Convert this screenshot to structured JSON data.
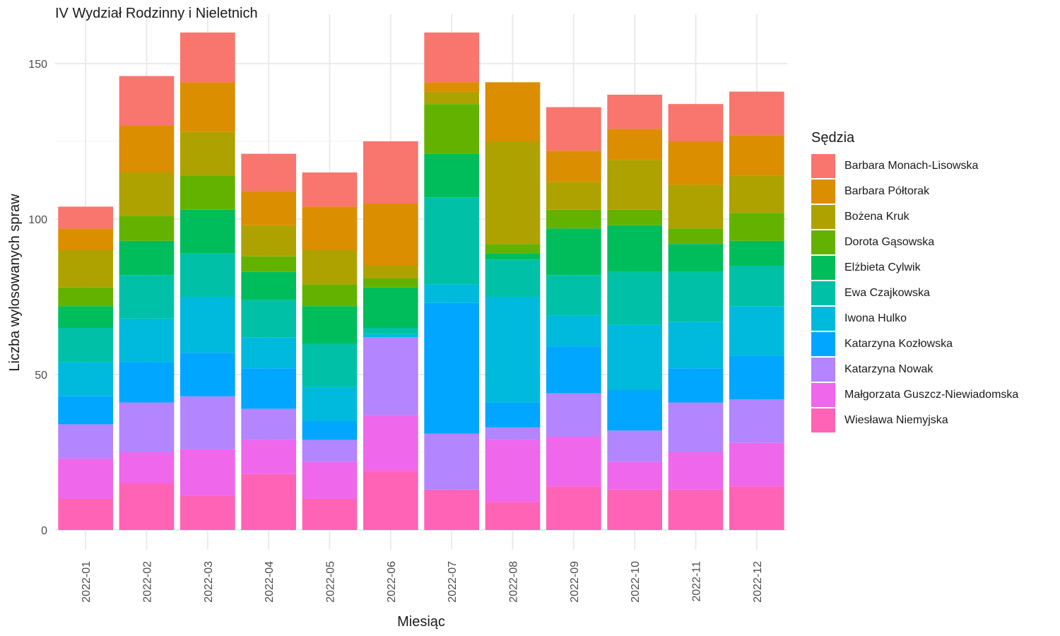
{
  "chart_data": {
    "type": "bar",
    "stacked": true,
    "title": "IV Wydział Rodzinny i Nieletnich",
    "xlabel": "Miesiąc",
    "ylabel": "Liczba wylosowanych spraw",
    "ylim": [
      0,
      160
    ],
    "yticks": [
      0,
      50,
      100,
      150
    ],
    "grid": true,
    "legend_title": "Sędzia",
    "legend_position": "right",
    "categories": [
      "2022-01",
      "2022-02",
      "2022-03",
      "2022-04",
      "2022-05",
      "2022-06",
      "2022-07",
      "2022-08",
      "2022-09",
      "2022-10",
      "2022-11",
      "2022-12"
    ],
    "series": [
      {
        "name": "Barbara Monach-Lisowska",
        "color": "#F8766D",
        "values": [
          7,
          16,
          16,
          12,
          11,
          20,
          16,
          0,
          14,
          11,
          12,
          14
        ]
      },
      {
        "name": "Barbara Półtorak",
        "color": "#DB8E00",
        "values": [
          7,
          15,
          16,
          11,
          14,
          20,
          3,
          19,
          10,
          10,
          14,
          13
        ]
      },
      {
        "name": "Bożena Kruk",
        "color": "#AEA200",
        "values": [
          12,
          14,
          14,
          10,
          11,
          4,
          4,
          33,
          9,
          16,
          14,
          12
        ]
      },
      {
        "name": "Dorota Gąsowska",
        "color": "#64B200",
        "values": [
          6,
          8,
          11,
          5,
          7,
          3,
          16,
          3,
          6,
          5,
          5,
          9
        ]
      },
      {
        "name": "Elżbieta Cylwik",
        "color": "#00BD5C",
        "values": [
          7,
          11,
          14,
          9,
          12,
          13,
          14,
          2,
          15,
          15,
          9,
          8
        ]
      },
      {
        "name": "Ewa Czajkowska",
        "color": "#00C1A7",
        "values": [
          11,
          14,
          14,
          12,
          14,
          2,
          28,
          12,
          13,
          17,
          16,
          13
        ]
      },
      {
        "name": "Iwona Hulko",
        "color": "#00BADE",
        "values": [
          11,
          14,
          18,
          10,
          11,
          1,
          6,
          34,
          10,
          21,
          15,
          16
        ]
      },
      {
        "name": "Katarzyna Kozłowska",
        "color": "#00A6FF",
        "values": [
          9,
          13,
          14,
          13,
          6,
          0,
          42,
          8,
          15,
          13,
          11,
          14
        ]
      },
      {
        "name": "Katarzyna Nowak",
        "color": "#B385FF",
        "values": [
          11,
          16,
          17,
          10,
          7,
          25,
          18,
          4,
          14,
          10,
          16,
          14
        ]
      },
      {
        "name": "Małgorzata Guszcz-Niewiadomska",
        "color": "#EF67EB",
        "values": [
          13,
          10,
          15,
          11,
          12,
          18,
          0,
          20,
          16,
          9,
          12,
          14
        ]
      },
      {
        "name": "Wiesława Niemyjska",
        "color": "#FF63B6",
        "values": [
          10,
          15,
          11,
          18,
          10,
          19,
          13,
          9,
          14,
          13,
          13,
          14
        ]
      }
    ]
  }
}
